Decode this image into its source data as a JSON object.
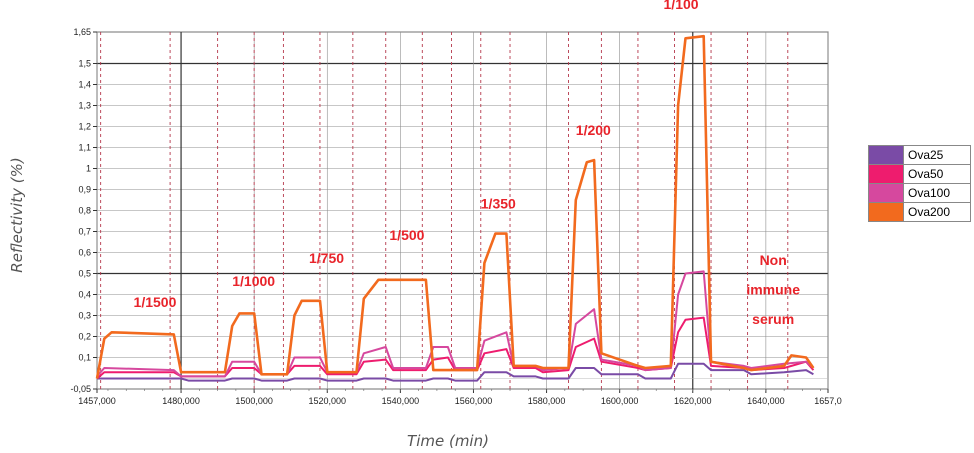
{
  "chart_data": {
    "type": "line",
    "xlabel": "Time (min)",
    "ylabel": "Reflectivity (%)",
    "xlim": [
      1457,
      1657
    ],
    "ylim": [
      -0.05,
      1.65
    ],
    "x_ticks": [
      "1457,000",
      "1480,000",
      "1500,000",
      "1520,000",
      "1540,000",
      "1560,000",
      "1580,000",
      "1600,000",
      "1620,000",
      "1640,000",
      "1657,0"
    ],
    "x_tick_values": [
      1457,
      1480,
      1500,
      1520,
      1540,
      1560,
      1580,
      1600,
      1620,
      1640,
      1657
    ],
    "y_ticks": [
      "-0,05",
      "0,1",
      "0,2",
      "0,3",
      "0,4",
      "0,5",
      "0,6",
      "0,7",
      "0,8",
      "0,9",
      "1",
      "1,1",
      "1,2",
      "1,3",
      "1,4",
      "1,5",
      "1,65"
    ],
    "y_tick_values": [
      -0.05,
      0.1,
      0.2,
      0.3,
      0.4,
      0.5,
      0.6,
      0.7,
      0.8,
      0.9,
      1.0,
      1.1,
      1.2,
      1.3,
      1.4,
      1.5,
      1.65
    ],
    "grid": true,
    "legend_position": "right",
    "series": [
      {
        "name": "Ova25",
        "color": "#7a4ba6",
        "points": [
          [
            1457,
            0.0
          ],
          [
            1460,
            0.0
          ],
          [
            1478,
            0.0
          ],
          [
            1480,
            0.0
          ],
          [
            1482,
            -0.01
          ],
          [
            1492,
            -0.01
          ],
          [
            1494,
            0.0
          ],
          [
            1500,
            0.0
          ],
          [
            1502,
            -0.01
          ],
          [
            1509,
            -0.01
          ],
          [
            1511,
            0.0
          ],
          [
            1518,
            0.0
          ],
          [
            1520,
            -0.01
          ],
          [
            1528,
            -0.01
          ],
          [
            1530,
            0.0
          ],
          [
            1536,
            0.0
          ],
          [
            1538,
            -0.01
          ],
          [
            1547,
            -0.01
          ],
          [
            1549,
            0.0
          ],
          [
            1553,
            0.0
          ],
          [
            1555,
            -0.01
          ],
          [
            1561,
            -0.01
          ],
          [
            1563,
            0.03
          ],
          [
            1569,
            0.03
          ],
          [
            1571,
            0.01
          ],
          [
            1577,
            0.01
          ],
          [
            1579,
            0.0
          ],
          [
            1586,
            0.0
          ],
          [
            1588,
            0.05
          ],
          [
            1593,
            0.05
          ],
          [
            1595,
            0.02
          ],
          [
            1605,
            0.02
          ],
          [
            1607,
            0.0
          ],
          [
            1614,
            0.0
          ],
          [
            1616,
            0.07
          ],
          [
            1623,
            0.07
          ],
          [
            1625,
            0.04
          ],
          [
            1634,
            0.04
          ],
          [
            1636,
            0.02
          ],
          [
            1645,
            0.03
          ],
          [
            1651,
            0.04
          ],
          [
            1653,
            0.02
          ]
        ]
      },
      {
        "name": "Ova50",
        "color": "#ee1c6e",
        "points": [
          [
            1457,
            0.0
          ],
          [
            1459,
            0.03
          ],
          [
            1478,
            0.03
          ],
          [
            1480,
            0.01
          ],
          [
            1492,
            0.01
          ],
          [
            1494,
            0.05
          ],
          [
            1500,
            0.05
          ],
          [
            1502,
            0.02
          ],
          [
            1509,
            0.02
          ],
          [
            1511,
            0.06
          ],
          [
            1518,
            0.06
          ],
          [
            1520,
            0.02
          ],
          [
            1528,
            0.02
          ],
          [
            1530,
            0.08
          ],
          [
            1536,
            0.09
          ],
          [
            1538,
            0.04
          ],
          [
            1547,
            0.04
          ],
          [
            1549,
            0.09
          ],
          [
            1553,
            0.1
          ],
          [
            1555,
            0.04
          ],
          [
            1561,
            0.04
          ],
          [
            1563,
            0.12
          ],
          [
            1569,
            0.14
          ],
          [
            1571,
            0.05
          ],
          [
            1577,
            0.05
          ],
          [
            1579,
            0.03
          ],
          [
            1586,
            0.04
          ],
          [
            1588,
            0.15
          ],
          [
            1593,
            0.19
          ],
          [
            1595,
            0.08
          ],
          [
            1605,
            0.05
          ],
          [
            1607,
            0.04
          ],
          [
            1614,
            0.05
          ],
          [
            1616,
            0.22
          ],
          [
            1618,
            0.28
          ],
          [
            1623,
            0.29
          ],
          [
            1625,
            0.06
          ],
          [
            1634,
            0.05
          ],
          [
            1636,
            0.04
          ],
          [
            1645,
            0.05
          ],
          [
            1651,
            0.08
          ],
          [
            1653,
            0.04
          ]
        ]
      },
      {
        "name": "Ova100",
        "color": "#d6489e",
        "points": [
          [
            1457,
            0.01
          ],
          [
            1459,
            0.05
          ],
          [
            1478,
            0.04
          ],
          [
            1480,
            0.01
          ],
          [
            1492,
            0.01
          ],
          [
            1494,
            0.08
          ],
          [
            1500,
            0.08
          ],
          [
            1502,
            0.02
          ],
          [
            1509,
            0.02
          ],
          [
            1511,
            0.1
          ],
          [
            1518,
            0.1
          ],
          [
            1520,
            0.03
          ],
          [
            1528,
            0.03
          ],
          [
            1530,
            0.12
          ],
          [
            1536,
            0.15
          ],
          [
            1538,
            0.05
          ],
          [
            1547,
            0.05
          ],
          [
            1549,
            0.15
          ],
          [
            1553,
            0.15
          ],
          [
            1555,
            0.05
          ],
          [
            1561,
            0.05
          ],
          [
            1563,
            0.18
          ],
          [
            1569,
            0.22
          ],
          [
            1571,
            0.06
          ],
          [
            1577,
            0.06
          ],
          [
            1579,
            0.04
          ],
          [
            1586,
            0.05
          ],
          [
            1588,
            0.26
          ],
          [
            1593,
            0.33
          ],
          [
            1595,
            0.09
          ],
          [
            1605,
            0.06
          ],
          [
            1607,
            0.04
          ],
          [
            1614,
            0.05
          ],
          [
            1616,
            0.4
          ],
          [
            1618,
            0.5
          ],
          [
            1623,
            0.51
          ],
          [
            1625,
            0.08
          ],
          [
            1634,
            0.06
          ],
          [
            1636,
            0.05
          ],
          [
            1645,
            0.07
          ],
          [
            1651,
            0.08
          ],
          [
            1653,
            0.05
          ]
        ]
      },
      {
        "name": "Ova200",
        "color": "#f26a1e",
        "points": [
          [
            1457,
            0.0
          ],
          [
            1459,
            0.19
          ],
          [
            1461,
            0.22
          ],
          [
            1478,
            0.21
          ],
          [
            1480,
            0.03
          ],
          [
            1492,
            0.03
          ],
          [
            1494,
            0.25
          ],
          [
            1496,
            0.31
          ],
          [
            1500,
            0.31
          ],
          [
            1502,
            0.02
          ],
          [
            1509,
            0.02
          ],
          [
            1511,
            0.3
          ],
          [
            1513,
            0.37
          ],
          [
            1518,
            0.37
          ],
          [
            1520,
            0.03
          ],
          [
            1528,
            0.03
          ],
          [
            1530,
            0.38
          ],
          [
            1534,
            0.47
          ],
          [
            1547,
            0.47
          ],
          [
            1549,
            0.04
          ],
          [
            1555,
            0.04
          ],
          [
            1561,
            0.04
          ],
          [
            1563,
            0.55
          ],
          [
            1566,
            0.69
          ],
          [
            1569,
            0.69
          ],
          [
            1571,
            0.06
          ],
          [
            1577,
            0.06
          ],
          [
            1579,
            0.05
          ],
          [
            1586,
            0.05
          ],
          [
            1588,
            0.85
          ],
          [
            1591,
            1.03
          ],
          [
            1593,
            1.04
          ],
          [
            1595,
            0.12
          ],
          [
            1605,
            0.06
          ],
          [
            1607,
            0.05
          ],
          [
            1614,
            0.06
          ],
          [
            1616,
            1.3
          ],
          [
            1618,
            1.62
          ],
          [
            1623,
            1.63
          ],
          [
            1625,
            0.08
          ],
          [
            1634,
            0.05
          ],
          [
            1636,
            0.04
          ],
          [
            1645,
            0.06
          ],
          [
            1647,
            0.11
          ],
          [
            1651,
            0.1
          ],
          [
            1653,
            0.05
          ]
        ]
      }
    ],
    "annotations": [
      {
        "text": "1/1500",
        "x": 1467,
        "y": 0.34
      },
      {
        "text": "1/1000",
        "x": 1494,
        "y": 0.44
      },
      {
        "text": "1/750",
        "x": 1515,
        "y": 0.55
      },
      {
        "text": "1/500",
        "x": 1537,
        "y": 0.66
      },
      {
        "text": "1/350",
        "x": 1562,
        "y": 0.81
      },
      {
        "text": "1/200",
        "x": 1588,
        "y": 1.16
      },
      {
        "text": "1/100",
        "x": 1612,
        "y": 1.76
      },
      {
        "text": "Non",
        "x": 1642,
        "y": 0.54
      },
      {
        "text": "immune",
        "x": 1642,
        "y": 0.4
      },
      {
        "text": "serum",
        "x": 1642,
        "y": 0.26
      }
    ],
    "injection_lines_x": [
      1458,
      1477,
      1490,
      1500,
      1508,
      1518,
      1527,
      1536,
      1546,
      1554,
      1562,
      1570,
      1586,
      1595,
      1605,
      1615,
      1625,
      1635,
      1646
    ]
  }
}
